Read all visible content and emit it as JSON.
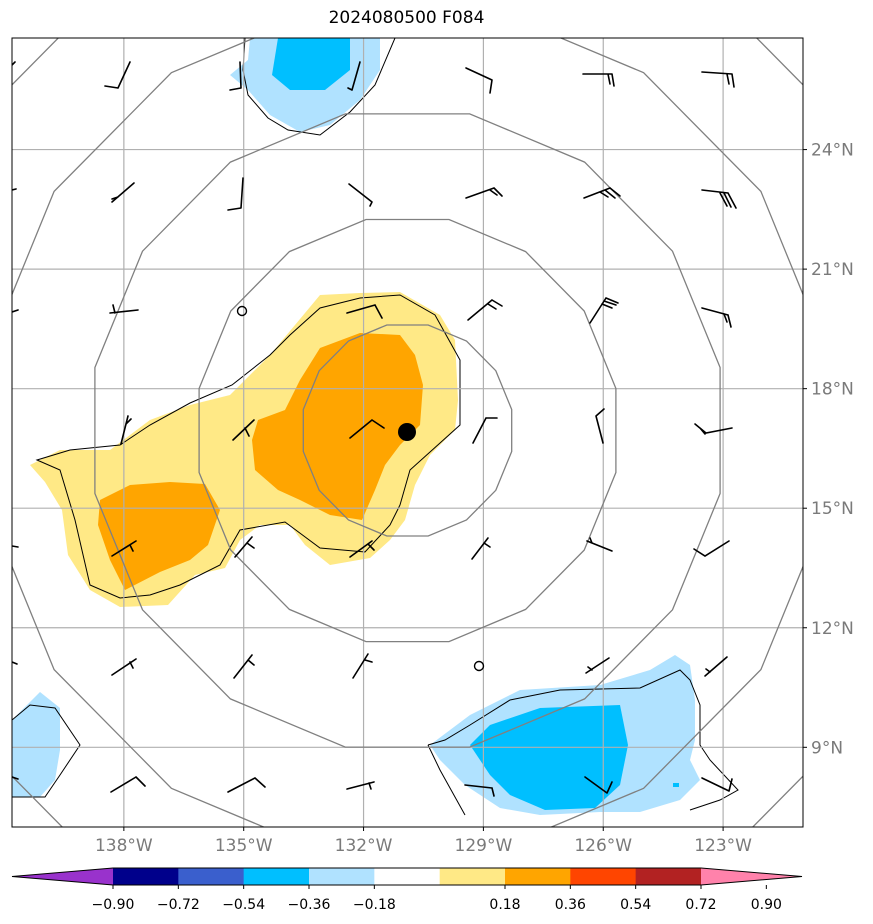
{
  "title": "2024080500 F084",
  "map": {
    "lon_range": [
      -140.8,
      -121.0
    ],
    "lat_range": [
      7.0,
      26.8
    ],
    "lon_ticks": [
      {
        "value": -138,
        "label": "138°W"
      },
      {
        "value": -135,
        "label": "135°W"
      },
      {
        "value": -132,
        "label": "132°W"
      },
      {
        "value": -129,
        "label": "129°W"
      },
      {
        "value": -126,
        "label": "126°W"
      },
      {
        "value": -123,
        "label": "123°W"
      }
    ],
    "lat_ticks": [
      {
        "value": 24,
        "label": "24°N"
      },
      {
        "value": 21,
        "label": "21°N"
      },
      {
        "value": 18,
        "label": "18°N"
      },
      {
        "value": 15,
        "label": "15°N"
      },
      {
        "value": 12,
        "label": "12°N"
      },
      {
        "value": 9,
        "label": "9°N"
      }
    ],
    "storm_center": {
      "lon": -130.9,
      "lat": 16.95
    },
    "range_rings_deg": [
      2.7,
      5.4,
      8.1,
      10.8,
      13.5
    ]
  },
  "colorbar": {
    "tick_labels": [
      "−0.90",
      "−0.72",
      "−0.54",
      "−0.36",
      "−0.18",
      "0.18",
      "0.36",
      "0.54",
      "0.72",
      "0.90"
    ],
    "colors": [
      "#9932cc",
      "#00008b",
      "#3a5fcd",
      "#00bfff",
      "#b0e2ff",
      "#ffffff",
      "#ffe986",
      "#ffa500",
      "#ff4500",
      "#b22222",
      "#ff82ab"
    ]
  },
  "colors": {
    "pos_light": "#ffe986",
    "pos_mid": "#ffa500",
    "neg_light": "#b0e2ff",
    "neg_mid": "#00bfff",
    "grid": "#b0b0b0",
    "ring": "#808080"
  }
}
